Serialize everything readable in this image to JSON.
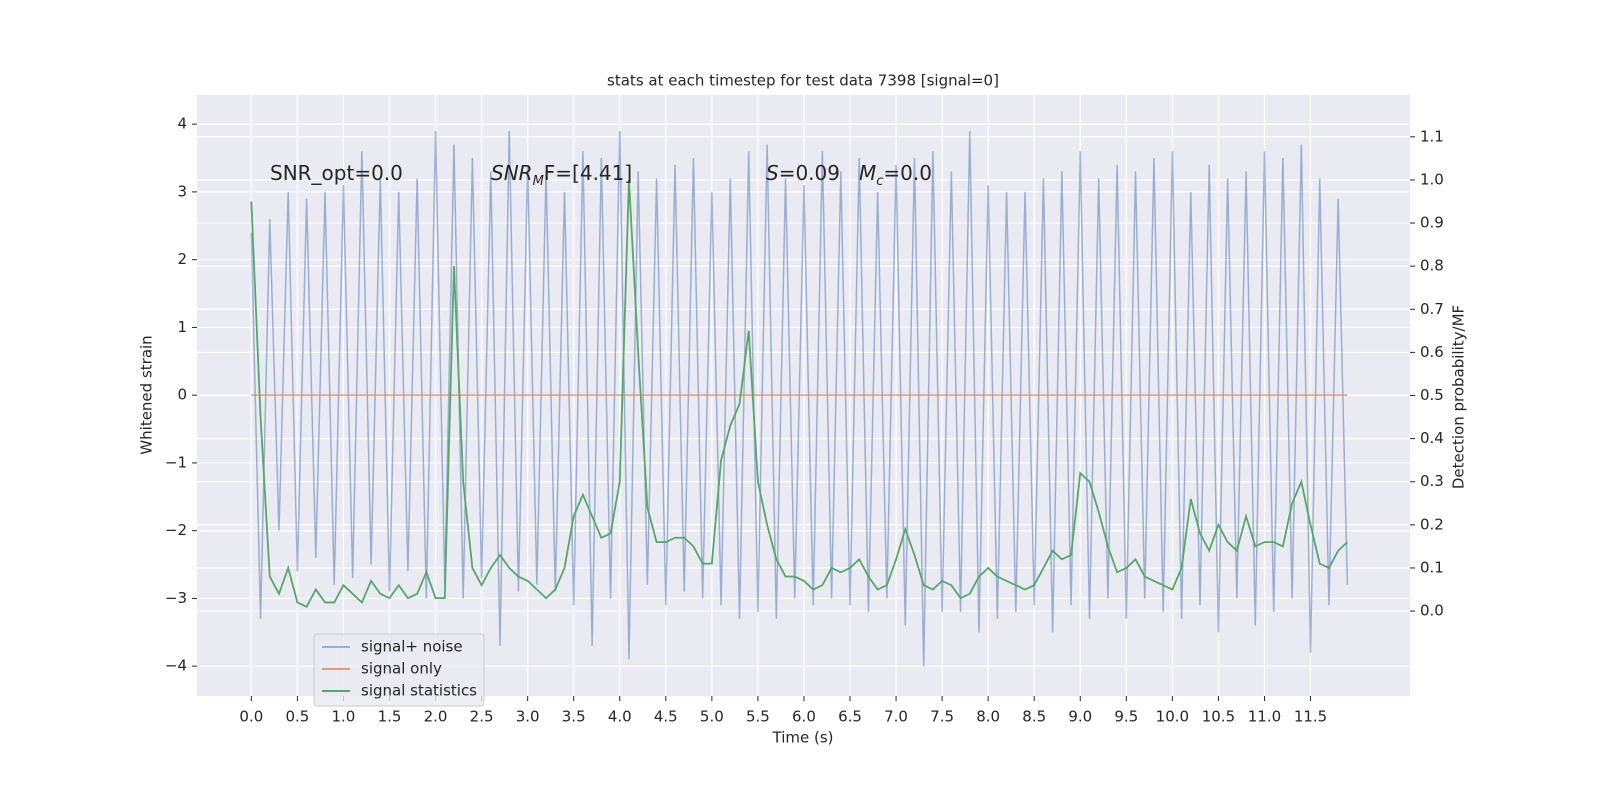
{
  "chart_data": {
    "type": "line",
    "title": "stats at each timestep for test data 7398 [signal=0]",
    "xlabel": "Time (s)",
    "ylabel": "Whitened strain",
    "y2label": "Detection probability/MF",
    "x": [
      0.0,
      0.1,
      0.2,
      0.3,
      0.4,
      0.5,
      0.6,
      0.7,
      0.8,
      0.9,
      1.0,
      1.1,
      1.2,
      1.3,
      1.4,
      1.5,
      1.6,
      1.7,
      1.8,
      1.9,
      2.0,
      2.1,
      2.2,
      2.3,
      2.4,
      2.5,
      2.6,
      2.7,
      2.8,
      2.9,
      3.0,
      3.1,
      3.2,
      3.3,
      3.4,
      3.5,
      3.6,
      3.7,
      3.8,
      3.9,
      4.0,
      4.1,
      4.2,
      4.3,
      4.4,
      4.5,
      4.6,
      4.7,
      4.8,
      4.9,
      5.0,
      5.1,
      5.2,
      5.3,
      5.4,
      5.5,
      5.6,
      5.7,
      5.8,
      5.9,
      6.0,
      6.1,
      6.2,
      6.3,
      6.4,
      6.5,
      6.6,
      6.7,
      6.8,
      6.9,
      7.0,
      7.1,
      7.2,
      7.3,
      7.4,
      7.5,
      7.6,
      7.7,
      7.8,
      7.9,
      8.0,
      8.1,
      8.2,
      8.3,
      8.4,
      8.5,
      8.6,
      8.7,
      8.8,
      8.9,
      9.0,
      9.1,
      9.2,
      9.3,
      9.4,
      9.5,
      9.6,
      9.7,
      9.8,
      9.9,
      10.0,
      10.1,
      10.2,
      10.3,
      10.4,
      10.5,
      10.6,
      10.7,
      10.8,
      10.9,
      11.0,
      11.1,
      11.2,
      11.3,
      11.4,
      11.5,
      11.6,
      11.7,
      11.8,
      11.9
    ],
    "series": [
      {
        "name": "signal+ noise",
        "color": "#4c72b0",
        "opacity": 0.5,
        "axis": "y",
        "values": [
          2.4,
          -3.3,
          2.6,
          -2.0,
          3.0,
          -2.6,
          2.9,
          -2.4,
          3.0,
          -2.8,
          3.1,
          -2.7,
          3.6,
          -2.5,
          3.2,
          -2.9,
          3.0,
          -2.6,
          3.2,
          -3.0,
          3.9,
          -2.8,
          3.7,
          -3.0,
          3.5,
          -2.7,
          3.3,
          -3.7,
          3.9,
          -2.9,
          3.4,
          -2.8,
          3.3,
          -2.9,
          3.0,
          -3.1,
          3.6,
          -3.7,
          3.5,
          -3.0,
          3.9,
          -3.9,
          3.3,
          -2.8,
          3.2,
          -3.1,
          3.4,
          -2.9,
          3.5,
          -3.0,
          3.0,
          -3.1,
          3.2,
          -3.3,
          3.6,
          -3.2,
          3.7,
          -3.3,
          3.2,
          -3.0,
          3.1,
          -3.1,
          3.6,
          -3.0,
          3.3,
          -3.1,
          3.5,
          -3.2,
          3.0,
          -3.0,
          3.4,
          -3.4,
          3.5,
          -4.0,
          3.6,
          -3.2,
          3.3,
          -3.2,
          3.9,
          -3.5,
          3.1,
          -3.3,
          3.0,
          -3.2,
          3.0,
          -3.1,
          3.2,
          -3.5,
          3.3,
          -3.1,
          3.6,
          -3.3,
          3.2,
          -3.0,
          3.4,
          -3.3,
          3.3,
          -3.0,
          3.5,
          -3.2,
          3.6,
          -3.3,
          3.0,
          -3.1,
          3.4,
          -3.5,
          3.2,
          -3.0,
          3.3,
          -3.4,
          3.6,
          -3.2,
          3.5,
          -3.0,
          3.7,
          -3.8,
          3.2,
          -3.1,
          2.9,
          -2.8
        ]
      },
      {
        "name": "signal only",
        "color": "#dd8452",
        "opacity": 0.8,
        "axis": "y",
        "values": [
          0,
          0,
          0,
          0,
          0,
          0,
          0,
          0,
          0,
          0,
          0,
          0,
          0,
          0,
          0,
          0,
          0,
          0,
          0,
          0,
          0,
          0,
          0,
          0,
          0,
          0,
          0,
          0,
          0,
          0,
          0,
          0,
          0,
          0,
          0,
          0,
          0,
          0,
          0,
          0,
          0,
          0,
          0,
          0,
          0,
          0,
          0,
          0,
          0,
          0,
          0,
          0,
          0,
          0,
          0,
          0,
          0,
          0,
          0,
          0,
          0,
          0,
          0,
          0,
          0,
          0,
          0,
          0,
          0,
          0,
          0,
          0,
          0,
          0,
          0,
          0,
          0,
          0,
          0,
          0,
          0,
          0,
          0,
          0,
          0,
          0,
          0,
          0,
          0,
          0,
          0,
          0,
          0,
          0,
          0,
          0,
          0,
          0,
          0,
          0,
          0,
          0,
          0,
          0,
          0,
          0,
          0,
          0,
          0,
          0,
          0,
          0,
          0,
          0,
          0,
          0,
          0,
          0,
          0,
          0
        ]
      },
      {
        "name": "signal statistics",
        "color": "#55a868",
        "opacity": 1,
        "axis": "y2",
        "values": [
          0.95,
          0.45,
          0.08,
          0.04,
          0.1,
          0.02,
          0.01,
          0.05,
          0.02,
          0.02,
          0.06,
          0.04,
          0.02,
          0.07,
          0.04,
          0.03,
          0.06,
          0.03,
          0.04,
          0.09,
          0.03,
          0.03,
          0.8,
          0.3,
          0.1,
          0.06,
          0.1,
          0.13,
          0.1,
          0.08,
          0.07,
          0.05,
          0.03,
          0.05,
          0.1,
          0.22,
          0.27,
          0.22,
          0.17,
          0.18,
          0.3,
          1.0,
          0.6,
          0.24,
          0.16,
          0.16,
          0.17,
          0.17,
          0.15,
          0.11,
          0.11,
          0.35,
          0.43,
          0.48,
          0.65,
          0.3,
          0.2,
          0.12,
          0.08,
          0.08,
          0.07,
          0.05,
          0.06,
          0.1,
          0.09,
          0.1,
          0.12,
          0.08,
          0.05,
          0.06,
          0.12,
          0.19,
          0.13,
          0.06,
          0.05,
          0.07,
          0.06,
          0.03,
          0.04,
          0.08,
          0.1,
          0.08,
          0.07,
          0.06,
          0.05,
          0.06,
          0.1,
          0.14,
          0.12,
          0.13,
          0.32,
          0.3,
          0.23,
          0.15,
          0.09,
          0.1,
          0.12,
          0.08,
          0.07,
          0.06,
          0.05,
          0.1,
          0.26,
          0.18,
          0.14,
          0.2,
          0.16,
          0.14,
          0.22,
          0.15,
          0.16,
          0.16,
          0.15,
          0.25,
          0.3,
          0.2,
          0.11,
          0.1,
          0.14,
          0.16
        ]
      }
    ],
    "annotations": [
      [
        {
          "text": "SNR_opt=0.0"
        }
      ],
      [
        {
          "text": "SNR",
          "style": "italic"
        },
        {
          "text": "M",
          "style": "sub"
        },
        {
          "text": "F=[4.41]"
        }
      ],
      [
        {
          "text": "S",
          "style": "italic"
        },
        {
          "text": "=0.09"
        }
      ],
      [
        {
          "text": "M",
          "style": "italic"
        },
        {
          "text": "c",
          "style": "sub"
        },
        {
          "text": "=0.0"
        }
      ]
    ],
    "xlim": [
      -0.59,
      12.58
    ],
    "ylim": [
      -4.44,
      4.43
    ],
    "y2lim": [
      -0.197,
      1.197
    ],
    "xticks": [
      {
        "value": 0,
        "label": "0.0"
      },
      {
        "value": 0.5,
        "label": "0.5"
      },
      {
        "value": 1,
        "label": "1.0"
      },
      {
        "value": 1.5,
        "label": "1.5"
      },
      {
        "value": 2,
        "label": "2.0"
      },
      {
        "value": 2.5,
        "label": "2.5"
      },
      {
        "value": 3,
        "label": "3.0"
      },
      {
        "value": 3.5,
        "label": "3.5"
      },
      {
        "value": 4,
        "label": "4.0"
      },
      {
        "value": 4.5,
        "label": "4.5"
      },
      {
        "value": 5,
        "label": "5.0"
      },
      {
        "value": 5.5,
        "label": "5.5"
      },
      {
        "value": 6,
        "label": "6.0"
      },
      {
        "value": 6.5,
        "label": "6.5"
      },
      {
        "value": 7,
        "label": "7.0"
      },
      {
        "value": 7.5,
        "label": "7.5"
      },
      {
        "value": 8,
        "label": "8.0"
      },
      {
        "value": 8.5,
        "label": "8.5"
      },
      {
        "value": 9,
        "label": "9.0"
      },
      {
        "value": 9.5,
        "label": "9.5"
      },
      {
        "value": 10,
        "label": "10.0"
      },
      {
        "value": 10.5,
        "label": "10.5"
      },
      {
        "value": 11,
        "label": "11.0"
      },
      {
        "value": 11.5,
        "label": "11.5"
      }
    ],
    "yticks": [
      {
        "value": -4,
        "label": "−4"
      },
      {
        "value": -3,
        "label": "−3"
      },
      {
        "value": -2,
        "label": "−2"
      },
      {
        "value": -1,
        "label": "−1"
      },
      0,
      1,
      2,
      3,
      4
    ],
    "y2ticks": [
      {
        "value": 0,
        "label": "0.0"
      },
      {
        "value": 0.1,
        "label": "0.1"
      },
      {
        "value": 0.2,
        "label": "0.2"
      },
      {
        "value": 0.3,
        "label": "0.3"
      },
      {
        "value": 0.4,
        "label": "0.4"
      },
      {
        "value": 0.5,
        "label": "0.5"
      },
      {
        "value": 0.6,
        "label": "0.6"
      },
      {
        "value": 0.7,
        "label": "0.7"
      },
      {
        "value": 0.8,
        "label": "0.8"
      },
      {
        "value": 0.9,
        "label": "0.9"
      },
      {
        "value": 1.0,
        "label": "1.0"
      },
      {
        "value": 1.1,
        "label": "1.1"
      }
    ],
    "grid": true,
    "legend_position": "lower left"
  }
}
